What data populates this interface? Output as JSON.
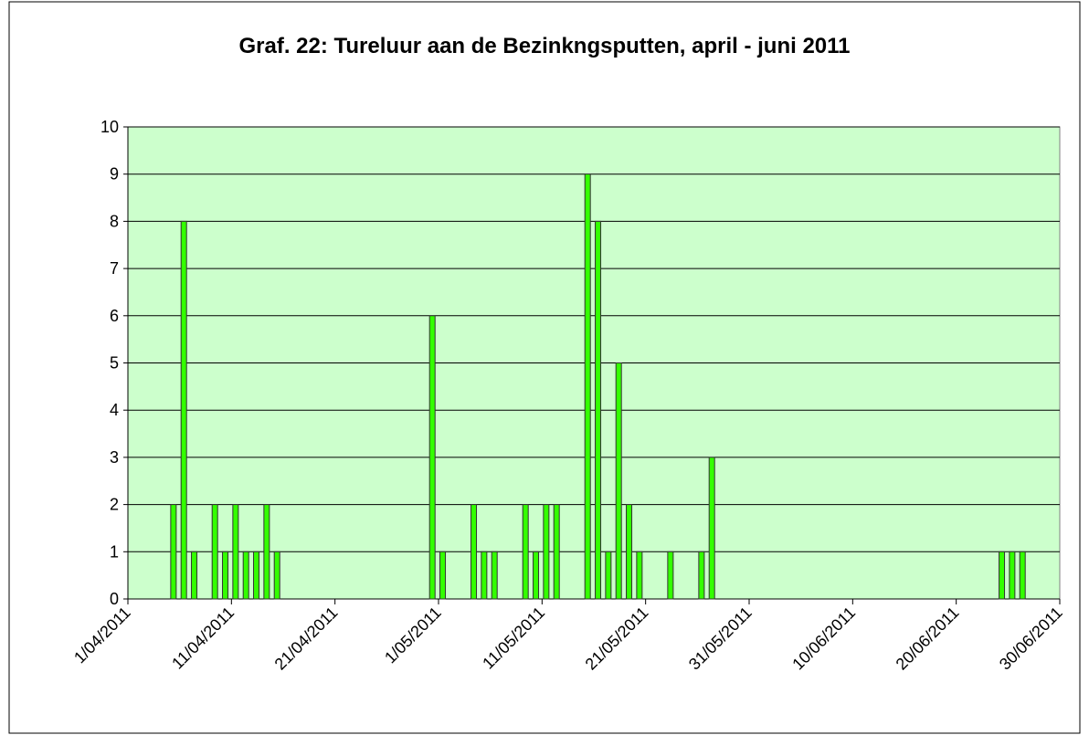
{
  "chart_data": {
    "type": "bar",
    "title": "Graf. 22: Tureluur aan de Bezinkngsputten, april - juni 2011",
    "x": [
      "5/04/2011",
      "6/04/2011",
      "7/04/2011",
      "9/04/2011",
      "10/04/2011",
      "11/04/2011",
      "12/04/2011",
      "13/04/2011",
      "14/04/2011",
      "15/04/2011",
      "30/04/2011",
      "1/05/2011",
      "4/05/2011",
      "5/05/2011",
      "6/05/2011",
      "9/05/2011",
      "10/05/2011",
      "11/05/2011",
      "12/05/2011",
      "15/05/2011",
      "16/05/2011",
      "17/05/2011",
      "18/05/2011",
      "19/05/2011",
      "20/05/2011",
      "23/05/2011",
      "26/05/2011",
      "27/05/2011",
      "24/06/2011",
      "25/06/2011",
      "26/06/2011"
    ],
    "values": [
      2,
      8,
      1,
      2,
      1,
      2,
      1,
      1,
      2,
      1,
      6,
      1,
      2,
      1,
      1,
      2,
      1,
      2,
      2,
      9,
      8,
      1,
      5,
      2,
      1,
      1,
      1,
      3,
      1,
      1,
      1
    ],
    "color": "#33ff00",
    "xlim": [
      "1/04/2011",
      "30/06/2011"
    ],
    "xticks": [
      "1/04/2011",
      "11/04/2011",
      "21/04/2011",
      "1/05/2011",
      "11/05/2011",
      "21/05/2011",
      "31/05/2011",
      "10/06/2011",
      "20/06/2011",
      "30/06/2011"
    ],
    "ylim": [
      0,
      10
    ],
    "yticks": [
      0,
      1,
      2,
      3,
      4,
      5,
      6,
      7,
      8,
      9,
      10
    ],
    "grid": true
  }
}
